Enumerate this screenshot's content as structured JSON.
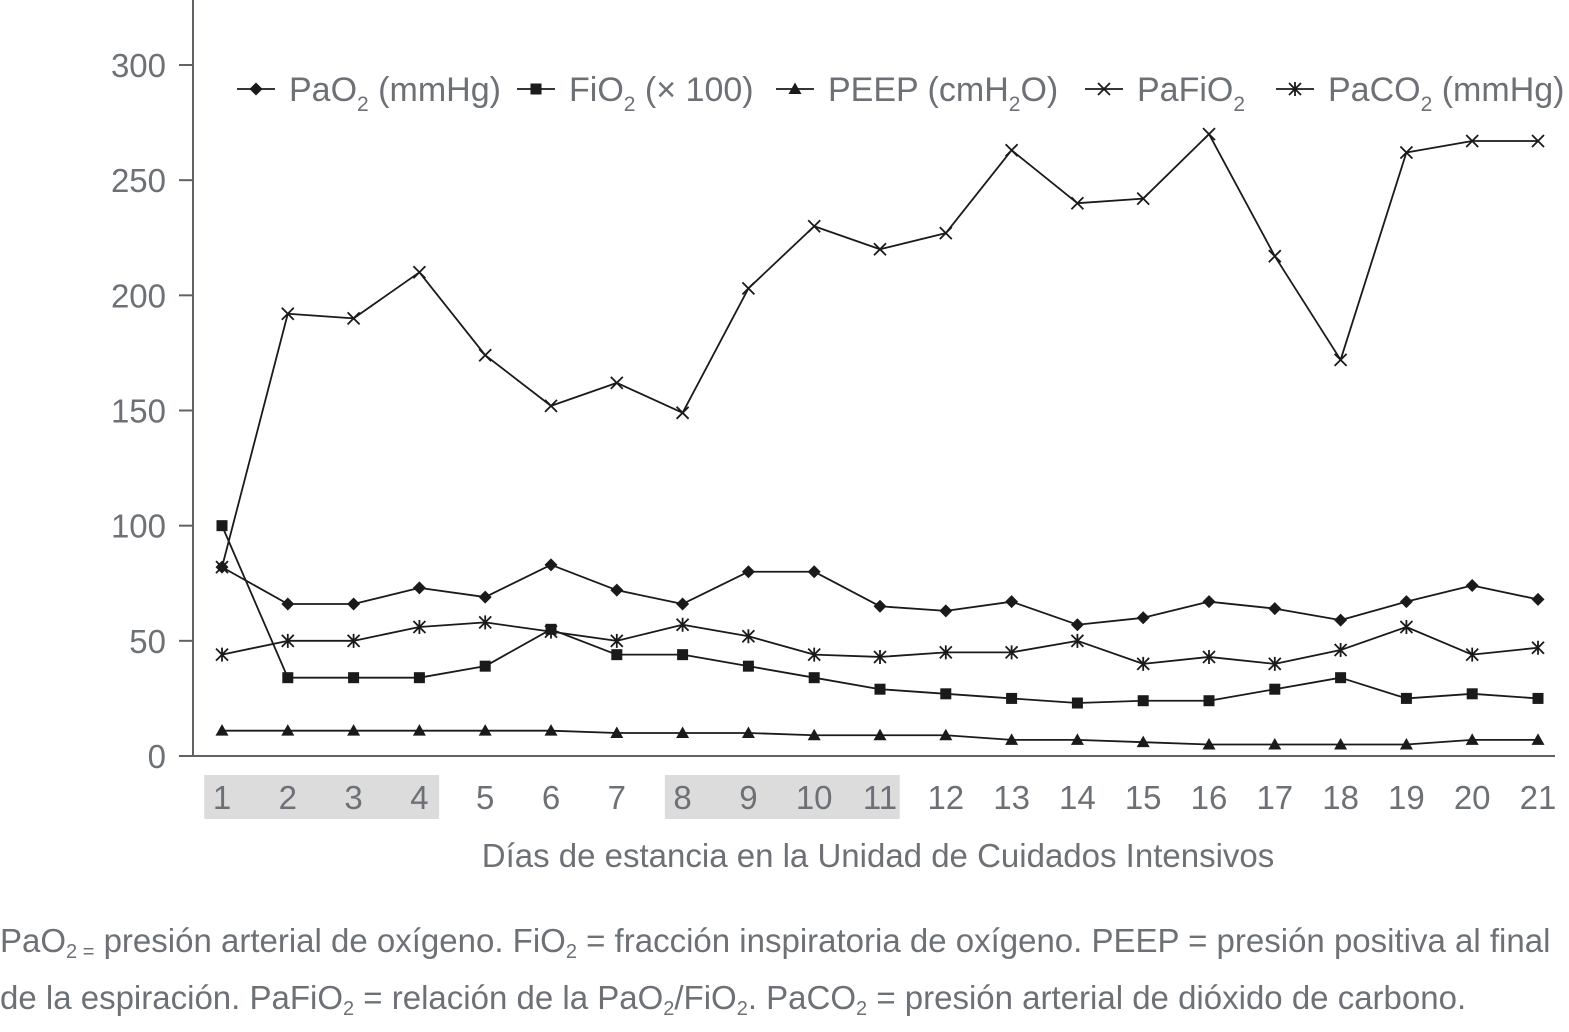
{
  "chart_data": {
    "type": "line",
    "x": [
      1,
      2,
      3,
      4,
      5,
      6,
      7,
      8,
      9,
      10,
      11,
      12,
      13,
      14,
      15,
      16,
      17,
      18,
      19,
      20,
      21
    ],
    "xlabel": "Días de estancia en la Unidad de Cuidados Intensivos",
    "ylabel": "",
    "ylim": [
      0,
      300
    ],
    "yticks": [
      0,
      50,
      100,
      150,
      200,
      250,
      300
    ],
    "highlighted_x_ranges": [
      [
        1,
        4
      ],
      [
        8,
        11
      ]
    ],
    "legend_position": "top",
    "grid": false,
    "series": [
      {
        "key": "pao2",
        "name_parts": [
          "PaO",
          "2",
          " (mmHg)"
        ],
        "marker": "diamond",
        "values": [
          82,
          66,
          66,
          73,
          69,
          83,
          72,
          66,
          80,
          80,
          65,
          63,
          67,
          57,
          60,
          67,
          64,
          59,
          67,
          74,
          68
        ]
      },
      {
        "key": "fio2",
        "name_parts": [
          "FiO",
          "2",
          " (× 100)"
        ],
        "marker": "square",
        "values": [
          100,
          34,
          34,
          34,
          39,
          55,
          44,
          44,
          39,
          34,
          29,
          27,
          25,
          23,
          24,
          24,
          29,
          34,
          25,
          27,
          25
        ]
      },
      {
        "key": "peep",
        "name_parts": [
          "PEEP (cmH",
          "2",
          "O)"
        ],
        "marker": "triangle",
        "values": [
          11,
          11,
          11,
          11,
          11,
          11,
          10,
          10,
          10,
          9,
          9,
          9,
          7,
          7,
          6,
          5,
          5,
          5,
          5,
          7,
          7
        ]
      },
      {
        "key": "pafio2",
        "name_parts": [
          "PaFiO",
          "2",
          ""
        ],
        "marker": "x",
        "values": [
          82,
          192,
          190,
          210,
          174,
          152,
          162,
          149,
          203,
          230,
          220,
          227,
          263,
          240,
          242,
          270,
          217,
          172,
          262,
          267,
          267
        ]
      },
      {
        "key": "paco2",
        "name_parts": [
          "PaCO",
          "2",
          " (mmHg)"
        ],
        "marker": "star",
        "values": [
          44,
          50,
          50,
          56,
          58,
          54,
          50,
          57,
          52,
          44,
          43,
          45,
          45,
          50,
          40,
          43,
          40,
          46,
          56,
          44,
          47
        ]
      }
    ]
  },
  "caption": {
    "line1": [
      "PaO",
      "2 =",
      " presión arterial de oxígeno. FiO",
      "2",
      " = fracción inspiratoria de oxígeno. PEEP = presión positiva al final"
    ],
    "line2": [
      "de la espiración. PaFiO",
      "2",
      " = relación de la PaO",
      "2",
      "/FiO",
      "2",
      ". PaCO",
      "2",
      " = presión arterial de dióxido de carbono."
    ]
  }
}
